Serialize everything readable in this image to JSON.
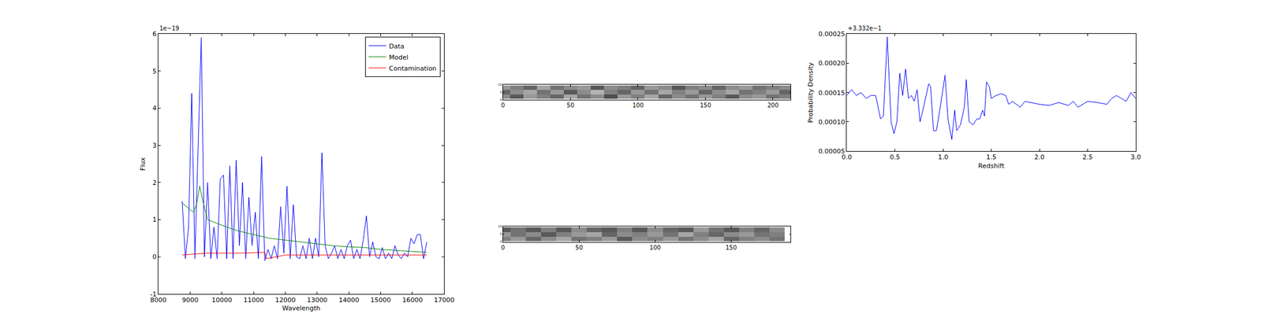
{
  "chart_data": [
    {
      "type": "line",
      "x_label": "Wavelength",
      "y_label": "Flux",
      "annotations": [
        "1e−19"
      ],
      "xlim": [
        8000,
        17000
      ],
      "xticks": [
        8000,
        9000,
        10000,
        11000,
        12000,
        13000,
        14000,
        15000,
        16000,
        17000
      ],
      "ylim": [
        -1,
        6
      ],
      "yticks": [
        -1,
        0,
        1,
        2,
        3,
        4,
        5,
        6
      ],
      "grid": false,
      "legend": "upper right",
      "series": [
        {
          "name": "Data",
          "color": "#0000ff",
          "x": [
            8750,
            8850,
            8950,
            9050,
            9150,
            9250,
            9350,
            9450,
            9550,
            9650,
            9750,
            9850,
            9950,
            10050,
            10150,
            10250,
            10350,
            10450,
            10550,
            10650,
            10750,
            10850,
            10950,
            11050,
            11150,
            11250,
            11350,
            11450,
            11550,
            11650,
            11750,
            11850,
            11950,
            12050,
            12150,
            12250,
            12350,
            12450,
            12550,
            12650,
            12750,
            12850,
            12950,
            13050,
            13150,
            13250,
            13350,
            13450,
            13550,
            13650,
            13750,
            13850,
            13950,
            14050,
            14150,
            14250,
            14350,
            14450,
            14550,
            14650,
            14750,
            14850,
            14950,
            15050,
            15150,
            15250,
            15350,
            15450,
            15550,
            15650,
            15750,
            15850,
            15950,
            16050,
            16150,
            16250,
            16350,
            16450
          ],
          "values": [
            1.5,
            -0.05,
            0.8,
            4.4,
            -0.05,
            2.8,
            5.9,
            0.0,
            2.0,
            -0.05,
            0.8,
            -0.05,
            2.1,
            2.2,
            -0.05,
            2.45,
            -0.05,
            2.6,
            0.3,
            2.0,
            -0.05,
            1.6,
            0.3,
            1.2,
            -0.05,
            2.7,
            -0.1,
            0.2,
            -0.05,
            0.3,
            -0.05,
            1.35,
            0.1,
            1.9,
            -0.05,
            1.4,
            0.0,
            -0.05,
            0.3,
            -0.05,
            0.5,
            -0.05,
            0.5,
            0.0,
            2.8,
            0.3,
            -0.05,
            0.1,
            0.3,
            -0.05,
            0.2,
            -0.05,
            0.3,
            0.45,
            -0.05,
            0.2,
            -0.05,
            0.45,
            1.1,
            0.0,
            0.4,
            0.0,
            -0.05,
            0.25,
            -0.05,
            0.1,
            -0.05,
            0.3,
            0.05,
            -0.05,
            0.1,
            0.0,
            0.5,
            0.35,
            0.6,
            0.6,
            -0.05,
            0.4
          ]
        },
        {
          "name": "Model",
          "color": "#008000",
          "x": [
            8750,
            8950,
            9100,
            9200,
            9300,
            9400,
            9550,
            10000,
            10500,
            11000,
            11500,
            12000,
            12500,
            13000,
            13500,
            14000,
            14500,
            15000,
            15500,
            16000,
            16450
          ],
          "values": [
            1.45,
            1.3,
            1.2,
            1.4,
            1.9,
            1.5,
            1.0,
            0.85,
            0.7,
            0.6,
            0.5,
            0.45,
            0.4,
            0.35,
            0.3,
            0.27,
            0.25,
            0.2,
            0.17,
            0.14,
            0.12
          ]
        },
        {
          "name": "Contamination",
          "color": "#ff0000",
          "x": [
            8750,
            9500,
            10500,
            11350,
            11400,
            12000,
            13000,
            14000,
            15000,
            16000,
            16450
          ],
          "values": [
            0.05,
            0.1,
            0.1,
            0.12,
            -0.05,
            0.05,
            0.05,
            0.05,
            0.05,
            0.05,
            0.05
          ]
        }
      ]
    },
    {
      "type": "heatmap",
      "xlim": [
        0,
        213
      ],
      "xticks": [
        0,
        50,
        100,
        150,
        200
      ],
      "ylim": [
        0,
        10
      ],
      "yticks": [
        0,
        5,
        10
      ],
      "zlim": [
        -1,
        1
      ],
      "grid": false,
      "x": [
        0,
        10,
        20,
        30,
        40,
        50,
        60,
        70,
        80,
        90,
        100,
        110,
        120,
        130,
        140,
        150,
        160,
        170,
        180,
        190,
        200,
        210
      ],
      "y": [
        2,
        5,
        8
      ],
      "cells": [
        [
          0.1,
          -0.3,
          0.2,
          0.0,
          -0.2,
          0.3,
          -0.1,
          0.1,
          -0.4,
          0.2,
          0.0,
          0.3,
          -0.2,
          0.1,
          -0.1,
          0.2,
          0.0,
          -0.3,
          0.1,
          0.2,
          -0.1,
          0.0
        ],
        [
          -0.2,
          0.1,
          0.3,
          -0.1,
          0.2,
          -0.3,
          0.1,
          0.4,
          0.0,
          -0.2,
          0.2,
          -0.1,
          0.3,
          0.0,
          0.2,
          -0.2,
          0.1,
          0.3,
          -0.1,
          0.0,
          0.2,
          -0.2
        ],
        [
          0.2,
          0.0,
          -0.2,
          0.3,
          -0.1,
          0.1,
          0.2,
          -0.3,
          0.1,
          0.0,
          -0.2,
          0.2,
          0.1,
          -0.3,
          0.0,
          0.1,
          -0.2,
          0.1,
          0.2,
          -0.1,
          0.0,
          0.1
        ]
      ]
    },
    {
      "type": "heatmap",
      "xlim": [
        0,
        189
      ],
      "xticks": [
        0,
        50,
        100,
        150
      ],
      "ylim": [
        0,
        10
      ],
      "yticks": [
        0,
        5,
        10
      ],
      "zlim": [
        -1,
        1
      ],
      "grid": false,
      "x": [
        0,
        10,
        20,
        30,
        40,
        50,
        60,
        70,
        80,
        90,
        100,
        110,
        120,
        130,
        140,
        150,
        160,
        170,
        180
      ],
      "y": [
        2,
        5,
        8
      ],
      "cells": [
        [
          0.0,
          0.2,
          -0.2,
          0.1,
          0.3,
          -0.1,
          0.0,
          0.2,
          -0.3,
          0.1,
          0.0,
          0.2,
          -0.1,
          0.1,
          0.3,
          -0.2,
          0.0,
          0.1,
          -0.1
        ],
        [
          0.2,
          -0.1,
          0.1,
          -0.3,
          0.0,
          0.2,
          0.3,
          -0.2,
          0.1,
          0.0,
          0.2,
          -0.1,
          0.3,
          0.0,
          -0.2,
          0.1,
          0.2,
          -0.1,
          0.0
        ],
        [
          -0.3,
          -0.1,
          -0.3,
          0.0,
          -0.3,
          0.1,
          -0.2,
          -0.3,
          0.0,
          -0.3,
          0.1,
          -0.2,
          -0.3,
          0.2,
          -0.1,
          -0.3,
          0.0,
          -0.2,
          0.1
        ]
      ]
    },
    {
      "type": "line",
      "x_label": "Redshift",
      "y_label": "Probability Density",
      "annotations": [
        "+3.332e−1"
      ],
      "xlim": [
        0,
        3
      ],
      "xticks": [
        {
          "value": 0,
          "label": "0.0"
        },
        {
          "value": 0.5,
          "label": "0.5"
        },
        {
          "value": 1,
          "label": "1.0"
        },
        {
          "value": 1.5,
          "label": "1.5"
        },
        {
          "value": 2,
          "label": "2.0"
        },
        {
          "value": 2.5,
          "label": "2.5"
        },
        {
          "value": 3,
          "label": "3.0"
        }
      ],
      "ylim": [
        5e-05,
        0.00025
      ],
      "yticks": [
        {
          "value": 5e-05,
          "label": "0.00005"
        },
        {
          "value": 0.0001,
          "label": "0.00010"
        },
        {
          "value": 0.00015,
          "label": "0.00015"
        },
        {
          "value": 0.0002,
          "label": "0.00020"
        },
        {
          "value": 0.00025,
          "label": "0.00025"
        }
      ],
      "grid": false,
      "series": [
        {
          "color": "#0000ff",
          "x": [
            0,
            0.05,
            0.1,
            0.15,
            0.2,
            0.25,
            0.3,
            0.35,
            0.38,
            0.42,
            0.46,
            0.49,
            0.52,
            0.55,
            0.58,
            0.61,
            0.64,
            0.67,
            0.7,
            0.73,
            0.76,
            0.79,
            0.85,
            0.87,
            0.9,
            0.93,
            0.97,
            1.02,
            1.05,
            1.09,
            1.12,
            1.14,
            1.18,
            1.22,
            1.24,
            1.27,
            1.31,
            1.35,
            1.38,
            1.41,
            1.43,
            1.45,
            1.48,
            1.5,
            1.55,
            1.6,
            1.65,
            1.68,
            1.72,
            1.8,
            1.85,
            2.0,
            2.1,
            2.2,
            2.3,
            2.35,
            2.4,
            2.5,
            2.6,
            2.7,
            2.75,
            2.8,
            2.85,
            2.9,
            2.95,
            3.0
          ],
          "values": [
            0.000145,
            0.000155,
            0.000145,
            0.00015,
            0.00014,
            0.000145,
            0.000145,
            0.000105,
            0.00011,
            0.000245,
            0.0001,
            8e-05,
            0.0001,
            0.000183,
            0.000145,
            0.00019,
            0.00014,
            0.000145,
            0.000135,
            0.000155,
            0.0001,
            0.00012,
            0.000165,
            0.00016,
            8.5e-05,
            8.5e-05,
            0.000125,
            0.00018,
            0.000105,
            7e-05,
            0.00012,
            8.5e-05,
            9.5e-05,
            0.000125,
            0.000172,
            0.0001,
            9.5e-05,
            0.000105,
            0.000105,
            0.00012,
            0.00011,
            0.000168,
            0.00016,
            0.00014,
            0.000145,
            0.000148,
            0.000145,
            0.00013,
            0.000135,
            0.000125,
            0.000135,
            0.00013,
            0.000128,
            0.000133,
            0.000128,
            0.000135,
            0.000125,
            0.000135,
            0.000133,
            0.00013,
            0.00014,
            0.000145,
            0.00014,
            0.000135,
            0.00015,
            0.00014
          ]
        }
      ]
    }
  ]
}
